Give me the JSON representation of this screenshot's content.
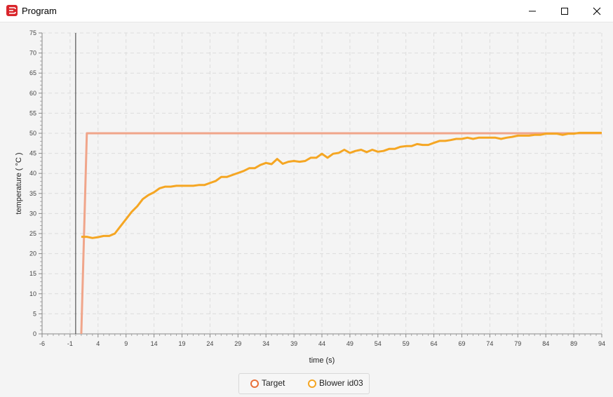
{
  "window": {
    "title": "Program",
    "icon": "app-logo-icon",
    "controls": [
      "minimize-icon",
      "maximize-icon",
      "close-icon"
    ]
  },
  "chart_data": {
    "type": "line",
    "title": "",
    "xlabel": "time (s)",
    "ylabel": "temperature ( °C )",
    "xlim": [
      -6,
      94
    ],
    "ylim": [
      0,
      75
    ],
    "x_ticks": [
      -6,
      -1,
      4,
      9,
      14,
      19,
      24,
      29,
      34,
      39,
      44,
      49,
      54,
      59,
      64,
      69,
      74,
      79,
      84,
      89,
      94
    ],
    "y_ticks": [
      0,
      5,
      10,
      15,
      20,
      25,
      30,
      35,
      40,
      45,
      50,
      55,
      60,
      65,
      70,
      75
    ],
    "grid": true,
    "legend": "bottom-center",
    "marker_line_x": 0,
    "series": [
      {
        "name": "Target",
        "color": "#f0a58a",
        "x": [
          1,
          2,
          94
        ],
        "y": [
          0,
          50,
          50
        ]
      },
      {
        "name": "Blower id03",
        "color": "#f5a623",
        "x": [
          1,
          2,
          3,
          4,
          5,
          6,
          7,
          8,
          9,
          10,
          11,
          12,
          13,
          14,
          15,
          16,
          17,
          18,
          19,
          20,
          21,
          22,
          23,
          24,
          25,
          26,
          27,
          28,
          29,
          30,
          31,
          32,
          33,
          34,
          35,
          36,
          37,
          38,
          39,
          40,
          41,
          42,
          43,
          44,
          45,
          46,
          47,
          48,
          49,
          50,
          51,
          52,
          53,
          54,
          55,
          56,
          57,
          58,
          59,
          60,
          61,
          62,
          63,
          64,
          65,
          66,
          67,
          68,
          69,
          70,
          71,
          72,
          73,
          74,
          75,
          76,
          77,
          78,
          79,
          80,
          81,
          82,
          83,
          84,
          85,
          86,
          87,
          88,
          89,
          90,
          91,
          92,
          93,
          94
        ],
        "y": [
          24.2,
          24.2,
          23.9,
          24.1,
          24.4,
          24.4,
          25.0,
          26.8,
          28.6,
          30.4,
          31.8,
          33.6,
          34.6,
          35.3,
          36.3,
          36.7,
          36.7,
          36.9,
          36.9,
          36.9,
          36.9,
          37.1,
          37.1,
          37.6,
          38.1,
          39.1,
          39.1,
          39.6,
          40.1,
          40.6,
          41.3,
          41.3,
          42.1,
          42.6,
          42.3,
          43.6,
          42.4,
          42.9,
          43.1,
          42.9,
          43.1,
          43.9,
          43.9,
          44.9,
          43.9,
          44.9,
          45.1,
          45.9,
          45.1,
          45.6,
          45.9,
          45.3,
          45.9,
          45.4,
          45.6,
          46.1,
          46.1,
          46.6,
          46.8,
          46.8,
          47.3,
          47.1,
          47.1,
          47.6,
          48.1,
          48.1,
          48.3,
          48.6,
          48.6,
          48.9,
          48.6,
          48.9,
          48.9,
          48.9,
          48.9,
          48.6,
          48.9,
          49.1,
          49.4,
          49.4,
          49.4,
          49.6,
          49.6,
          49.9,
          49.9,
          49.9,
          49.6,
          49.9,
          49.9,
          50.1,
          50.1,
          50.1,
          50.1,
          50.1
        ]
      }
    ]
  }
}
